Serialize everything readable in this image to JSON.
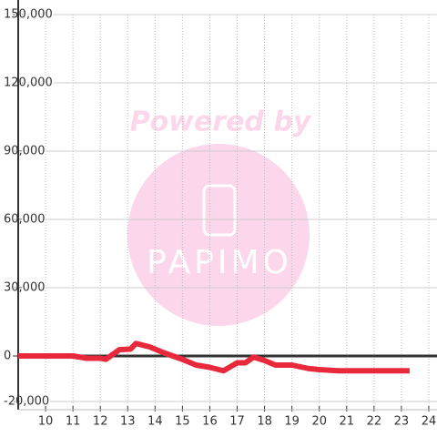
{
  "chart_data": {
    "type": "line",
    "watermark": {
      "title": "Powered by",
      "brand": "PAPIMO"
    },
    "x": [
      9,
      11,
      11.5,
      12,
      12.2,
      12.7,
      13.1,
      13.3,
      13.8,
      14.3,
      15,
      15.5,
      16,
      16.5,
      17,
      17.3,
      17.6,
      18,
      18.4,
      19,
      19.6,
      20,
      20.7,
      23.3
    ],
    "series": [
      {
        "color": "#e8293c",
        "values": [
          0,
          0,
          -1000,
          -1000,
          -1500,
          2800,
          3000,
          5500,
          4000,
          1500,
          -1500,
          -4000,
          -5000,
          -6500,
          -3000,
          -3000,
          -500,
          -2000,
          -4000,
          -4000,
          -5500,
          -6000,
          -6500,
          -6500
        ]
      }
    ],
    "xlim": [
      9,
      24.3
    ],
    "xticks": [
      10,
      11,
      12,
      13,
      14,
      15,
      16,
      17,
      18,
      19,
      20,
      21,
      22,
      23,
      24
    ],
    "ylim": [
      -20000,
      150000
    ],
    "yticks": [
      {
        "value": 150000,
        "label": "150,000"
      },
      {
        "value": 120000,
        "label": "120,000"
      },
      {
        "value": 90000,
        "label": "90,000"
      },
      {
        "value": 60000,
        "label": "60,000"
      },
      {
        "value": 30000,
        "label": "30,000"
      },
      0,
      {
        "value": -20000,
        "label": "-20,000"
      }
    ],
    "grid": true
  }
}
